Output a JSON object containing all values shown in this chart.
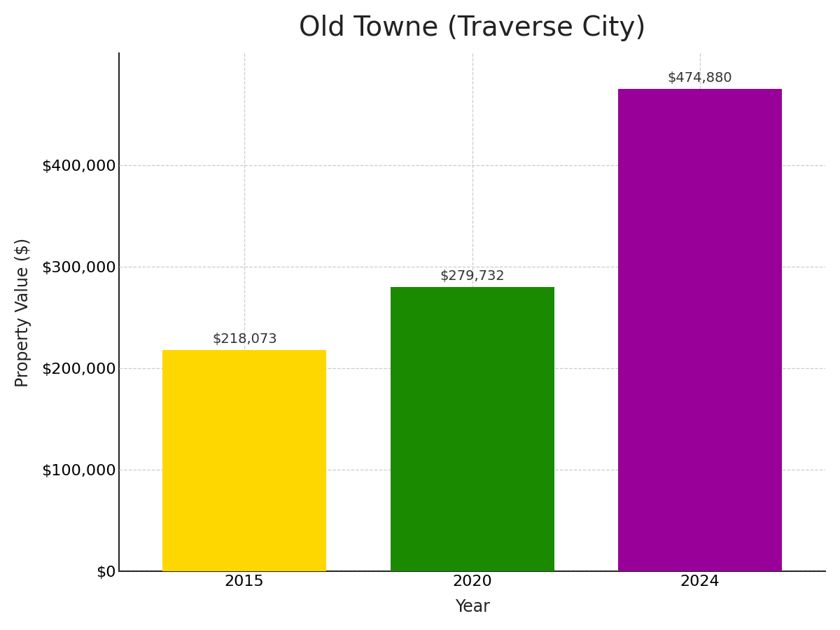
{
  "title": "Old Towne (Traverse City)",
  "xlabel": "Year",
  "ylabel": "Property Value ($)",
  "categories": [
    "2015",
    "2020",
    "2024"
  ],
  "values": [
    218073,
    279732,
    474880
  ],
  "bar_colors": [
    "#FFD700",
    "#1A8A00",
    "#990099"
  ],
  "bar_width": 0.72,
  "ylim": [
    0,
    510000
  ],
  "yticks": [
    0,
    100000,
    200000,
    300000,
    400000
  ],
  "value_labels": [
    "$218,073",
    "$279,732",
    "$474,880"
  ],
  "title_fontsize": 28,
  "axis_label_fontsize": 17,
  "tick_fontsize": 16,
  "annotation_fontsize": 14,
  "grid_color": "#cccccc",
  "background_color": "#ffffff",
  "spine_color": "#222222"
}
